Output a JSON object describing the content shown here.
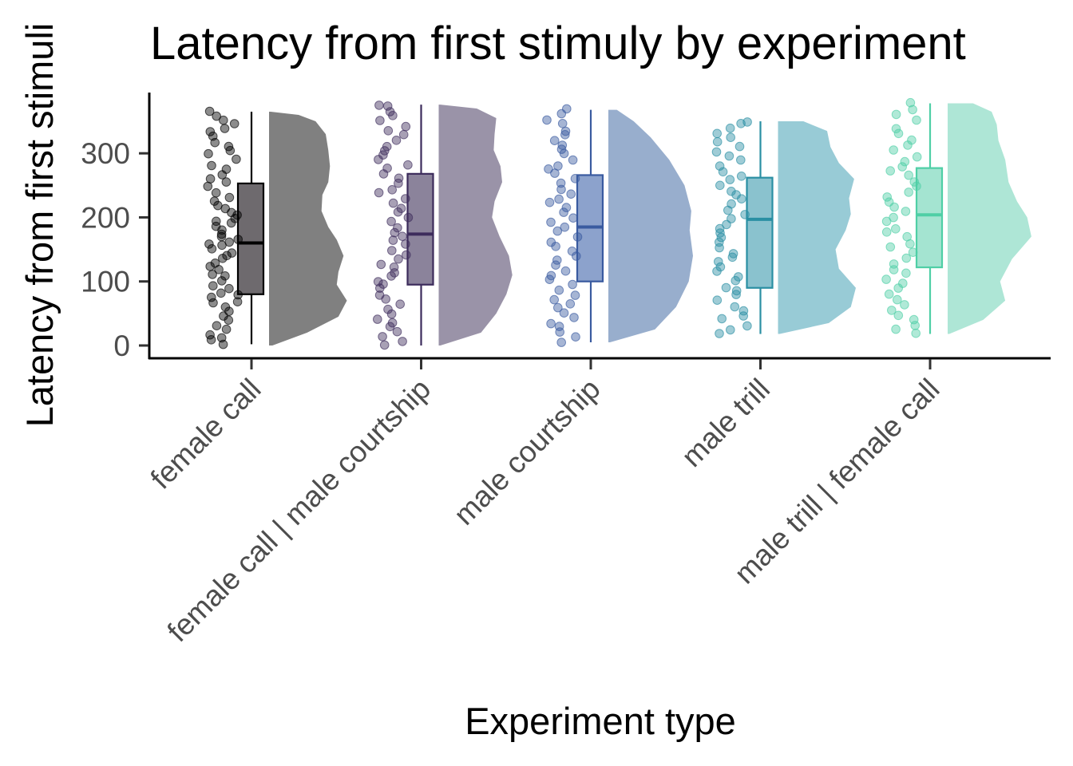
{
  "chart_data": {
    "type": "raincloud",
    "title": "Latency from first stimuly by experiment",
    "xlabel": "Experiment type",
    "ylabel": "Latency from first stimuli",
    "ylim": [
      -15,
      395
    ],
    "yticks": [
      0,
      100,
      200,
      300
    ],
    "categories": [
      "female call",
      "female call | male courtship",
      "male courtship",
      "male trill",
      "male trill | female call"
    ],
    "colors": [
      "#000000",
      "#3d2c5c",
      "#3a5ba0",
      "#2a8fa3",
      "#4fcfa6"
    ],
    "fill_colors": [
      "#666266",
      "#857c96",
      "#869dc9",
      "#84bfcb",
      "#9fe3cf"
    ],
    "density_colors": [
      "#808080",
      "#9a93a8",
      "#98aecd",
      "#98cbd6",
      "#aee6d6"
    ],
    "series": [
      {
        "name": "female call",
        "box": {
          "min": 2,
          "q1": 80,
          "median": 160,
          "q3": 253,
          "max": 365
        },
        "points": [
          2,
          8,
          12,
          18,
          25,
          32,
          38,
          45,
          52,
          60,
          65,
          70,
          75,
          78,
          82,
          88,
          95,
          100,
          108,
          112,
          118,
          125,
          130,
          135,
          140,
          145,
          150,
          155,
          158,
          162,
          165,
          170,
          175,
          180,
          185,
          190,
          195,
          200,
          205,
          208,
          212,
          218,
          225,
          232,
          240,
          248,
          255,
          262,
          268,
          275,
          282,
          290,
          298,
          305,
          312,
          318,
          325,
          332,
          340,
          345,
          350,
          358,
          365
        ],
        "density": [
          [
            0,
            0.04
          ],
          [
            20,
            0.45
          ],
          [
            45,
            0.82
          ],
          [
            70,
            0.92
          ],
          [
            95,
            0.8
          ],
          [
            115,
            0.82
          ],
          [
            140,
            0.88
          ],
          [
            165,
            0.8
          ],
          [
            185,
            0.7
          ],
          [
            210,
            0.62
          ],
          [
            235,
            0.63
          ],
          [
            255,
            0.7
          ],
          [
            280,
            0.72
          ],
          [
            305,
            0.7
          ],
          [
            330,
            0.67
          ],
          [
            350,
            0.55
          ],
          [
            360,
            0.35
          ],
          [
            365,
            0.02
          ]
        ]
      },
      {
        "name": "female call | male courtship",
        "box": {
          "min": 0,
          "q1": 95,
          "median": 174,
          "q3": 268,
          "max": 376
        },
        "points": [
          0,
          5,
          12,
          20,
          28,
          35,
          42,
          50,
          58,
          65,
          72,
          80,
          88,
          95,
          100,
          108,
          115,
          122,
          128,
          135,
          142,
          150,
          158,
          165,
          172,
          178,
          185,
          192,
          200,
          208,
          215,
          222,
          230,
          238,
          245,
          252,
          260,
          268,
          275,
          282,
          290,
          298,
          305,
          312,
          320,
          328,
          335,
          342,
          350,
          358,
          365,
          372,
          376
        ],
        "density": [
          [
            0,
            0.02
          ],
          [
            20,
            0.5
          ],
          [
            50,
            0.68
          ],
          [
            80,
            0.8
          ],
          [
            110,
            0.87
          ],
          [
            140,
            0.83
          ],
          [
            170,
            0.72
          ],
          [
            200,
            0.63
          ],
          [
            225,
            0.66
          ],
          [
            255,
            0.75
          ],
          [
            280,
            0.73
          ],
          [
            305,
            0.65
          ],
          [
            330,
            0.66
          ],
          [
            355,
            0.68
          ],
          [
            370,
            0.45
          ],
          [
            376,
            0.02
          ]
        ]
      },
      {
        "name": "male courtship",
        "box": {
          "min": 5,
          "q1": 100,
          "median": 185,
          "q3": 266,
          "max": 368
        },
        "points": [
          5,
          12,
          20,
          28,
          35,
          42,
          50,
          58,
          65,
          72,
          80,
          88,
          95,
          102,
          110,
          118,
          125,
          132,
          140,
          148,
          155,
          162,
          170,
          178,
          185,
          192,
          200,
          208,
          215,
          222,
          230,
          238,
          245,
          252,
          260,
          268,
          275,
          282,
          290,
          298,
          305,
          312,
          320,
          328,
          335,
          345,
          352,
          360,
          368
        ],
        "density": [
          [
            5,
            0.02
          ],
          [
            25,
            0.55
          ],
          [
            60,
            0.8
          ],
          [
            100,
            0.95
          ],
          [
            140,
            1.0
          ],
          [
            180,
            0.96
          ],
          [
            210,
            0.98
          ],
          [
            250,
            0.9
          ],
          [
            290,
            0.72
          ],
          [
            325,
            0.5
          ],
          [
            350,
            0.3
          ],
          [
            368,
            0.1
          ]
        ]
      },
      {
        "name": "male trill",
        "box": {
          "min": 18,
          "q1": 90,
          "median": 197,
          "q3": 262,
          "max": 350
        },
        "points": [
          18,
          25,
          32,
          40,
          48,
          55,
          62,
          70,
          78,
          85,
          92,
          100,
          108,
          115,
          122,
          130,
          138,
          145,
          152,
          160,
          168,
          175,
          182,
          190,
          198,
          205,
          212,
          220,
          228,
          235,
          242,
          250,
          258,
          265,
          272,
          280,
          288,
          295,
          302,
          310,
          318,
          325,
          332,
          340,
          345,
          350
        ],
        "density": [
          [
            18,
            0.02
          ],
          [
            35,
            0.6
          ],
          [
            60,
            0.86
          ],
          [
            90,
            0.92
          ],
          [
            120,
            0.72
          ],
          [
            150,
            0.68
          ],
          [
            180,
            0.8
          ],
          [
            205,
            0.86
          ],
          [
            230,
            0.84
          ],
          [
            260,
            0.9
          ],
          [
            285,
            0.72
          ],
          [
            310,
            0.62
          ],
          [
            335,
            0.58
          ],
          [
            350,
            0.3
          ]
        ]
      },
      {
        "name": "male trill | female call",
        "box": {
          "min": 18,
          "q1": 122,
          "median": 204,
          "q3": 277,
          "max": 378
        },
        "points": [
          18,
          25,
          32,
          40,
          48,
          56,
          64,
          72,
          80,
          88,
          96,
          105,
          112,
          120,
          128,
          136,
          144,
          152,
          160,
          168,
          176,
          184,
          192,
          200,
          208,
          216,
          224,
          232,
          240,
          248,
          256,
          264,
          272,
          280,
          288,
          296,
          304,
          312,
          320,
          330,
          340,
          350,
          360,
          370,
          378
        ],
        "density": [
          [
            18,
            0.02
          ],
          [
            40,
            0.42
          ],
          [
            70,
            0.68
          ],
          [
            100,
            0.62
          ],
          [
            135,
            0.76
          ],
          [
            170,
            0.99
          ],
          [
            200,
            0.94
          ],
          [
            225,
            0.82
          ],
          [
            255,
            0.72
          ],
          [
            290,
            0.68
          ],
          [
            320,
            0.6
          ],
          [
            345,
            0.58
          ],
          [
            365,
            0.52
          ],
          [
            378,
            0.3
          ]
        ]
      }
    ],
    "grid": false,
    "legend": "none"
  }
}
